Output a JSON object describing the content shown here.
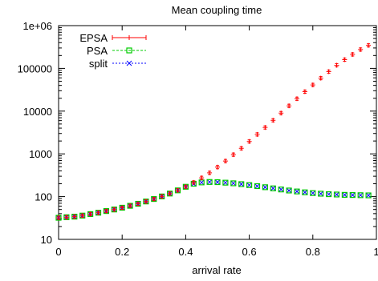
{
  "chart_data": {
    "type": "scatter",
    "title": "Mean coupling time",
    "xlabel": "arrival rate",
    "ylabel": "",
    "xlim": [
      0,
      1
    ],
    "ylim": [
      10,
      1000000
    ],
    "yscale": "log",
    "grid": false,
    "legend_position": "top-left",
    "x_ticks": [
      "0",
      "0.2",
      "0.4",
      "0.6",
      "0.8",
      "1"
    ],
    "y_ticks": [
      "10",
      "100",
      "1000",
      "10000",
      "100000",
      "1e+06"
    ],
    "x": [
      0.0,
      0.025,
      0.05,
      0.075,
      0.1,
      0.125,
      0.15,
      0.175,
      0.2,
      0.225,
      0.25,
      0.275,
      0.3,
      0.325,
      0.35,
      0.375,
      0.4,
      0.425,
      0.45,
      0.475,
      0.5,
      0.525,
      0.55,
      0.575,
      0.6,
      0.625,
      0.65,
      0.675,
      0.7,
      0.725,
      0.75,
      0.775,
      0.8,
      0.825,
      0.85,
      0.875,
      0.9,
      0.925,
      0.95,
      0.975
    ],
    "series": [
      {
        "name": "EPSA",
        "color": "#ff0000",
        "marker": "plus",
        "error_bars": true,
        "values": [
          32,
          33,
          34,
          36,
          39,
          42,
          46,
          50,
          55,
          61,
          68,
          77,
          88,
          101,
          118,
          140,
          170,
          215,
          275,
          360,
          490,
          680,
          960,
          1350,
          1950,
          2850,
          4150,
          6100,
          9000,
          13300,
          19500,
          28500,
          41000,
          59000,
          84000,
          118000,
          160000,
          212000,
          276000,
          345000
        ]
      },
      {
        "name": "PSA",
        "color": "#00cc00",
        "marker": "square",
        "error_bars": false,
        "values": [
          32,
          33,
          34,
          36,
          39,
          42,
          46,
          50,
          55,
          61,
          68,
          77,
          88,
          101,
          118,
          140,
          170,
          200,
          215,
          220,
          218,
          212,
          205,
          196,
          186,
          176,
          166,
          156,
          147,
          139,
          132,
          126,
          121,
          117,
          114,
          112,
          110,
          109,
          108,
          107
        ]
      },
      {
        "name": "split",
        "color": "#0000ff",
        "marker": "x",
        "error_bars": false,
        "values": [
          32,
          33,
          34,
          36,
          39,
          42,
          46,
          50,
          55,
          61,
          68,
          77,
          88,
          101,
          118,
          140,
          168,
          198,
          214,
          220,
          218,
          212,
          205,
          196,
          186,
          176,
          166,
          156,
          147,
          139,
          132,
          126,
          121,
          117,
          114,
          112,
          110,
          109,
          108,
          107
        ]
      }
    ]
  }
}
